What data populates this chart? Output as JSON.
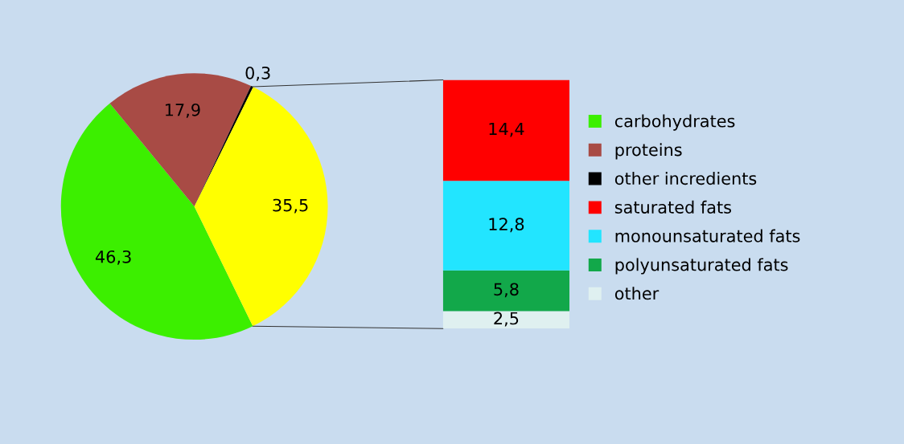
{
  "chart_data": [
    {
      "type": "pie",
      "categories": [
        "carbohydrates",
        "proteins",
        "other incredients",
        null
      ],
      "values": [
        46.3,
        17.9,
        0.3,
        35.5
      ],
      "colors": [
        "#3cef00",
        "#a84b45",
        "#000000",
        "#ffff00"
      ],
      "value_labels": [
        "46,3",
        "17,9",
        "0,3",
        "35,5"
      ],
      "legend": "right"
    },
    {
      "type": "bar",
      "stacked": true,
      "categories": [
        null
      ],
      "series": [
        {
          "name": "other",
          "color": "#dff0f0",
          "values": [
            2.5
          ],
          "value_labels": [
            "2,5"
          ]
        },
        {
          "name": "polyunsaturated fats",
          "color": "#12a84a",
          "values": [
            5.8
          ],
          "value_labels": [
            "5,8"
          ]
        },
        {
          "name": "monounsaturated fats",
          "color": "#22e5ff",
          "values": [
            12.8
          ],
          "value_labels": [
            "12,8"
          ]
        },
        {
          "name": "saturated fats",
          "color": "#ff0000",
          "values": [
            14.4
          ],
          "value_labels": [
            "14,4"
          ]
        }
      ],
      "legend": "right"
    }
  ]
}
